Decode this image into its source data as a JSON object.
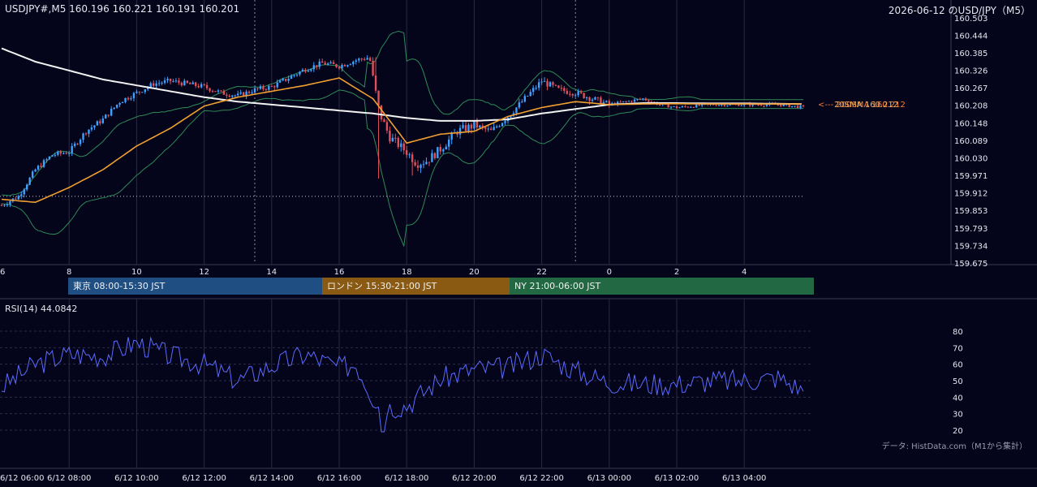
{
  "header": {
    "ohlc_text": "USDJPY#,M5 160.196 160.221 160.191 160.201",
    "title": "2026-06-12 のUSD/JPY（M5）"
  },
  "sessions": {
    "tokyo": "東京 08:00-15:30 JST",
    "london": "ロンドン 15:30-21:00 JST",
    "ny": "NY 21:00-06:00 JST"
  },
  "rsi": {
    "label": "RSI(14) 44.0842"
  },
  "credit": "データ: HistData.com（M1から集計）",
  "colors": {
    "background": "#04041a",
    "candle_up": "#3fa0ff",
    "candle_down": "#e0505a",
    "sma20": "#f0a030",
    "sma200": "#f2f2f2",
    "bollinger": "#2e8b57",
    "rsi_line": "#5b6bff",
    "grid": "#2a2a40"
  },
  "chart_data": [
    {
      "type": "line",
      "name": "price",
      "ylim": [
        159.675,
        160.503
      ],
      "yticks": [
        "160.503",
        "160.444",
        "160.385",
        "160.326",
        "160.267",
        "160.208",
        "160.148",
        "160.089",
        "160.030",
        "159.971",
        "159.912",
        "159.853",
        "159.793",
        "159.734",
        "159.675"
      ],
      "xticks_top": [
        "6",
        "8",
        "10",
        "12",
        "14",
        "16",
        "18",
        "20",
        "22",
        "0",
        "2",
        "4"
      ],
      "x_hours": [
        6,
        7,
        8,
        9,
        10,
        11,
        12,
        13,
        14,
        15,
        16,
        17,
        18,
        19,
        20,
        21,
        22,
        23,
        24,
        25,
        26,
        27,
        28,
        29.75
      ],
      "series": [
        {
          "name": "20SMA",
          "values": [
            159.89,
            159.88,
            159.93,
            159.99,
            160.07,
            160.13,
            160.205,
            160.235,
            160.255,
            160.275,
            160.3,
            160.23,
            160.08,
            160.11,
            160.12,
            160.17,
            160.2,
            160.22,
            160.21,
            160.212,
            160.213,
            160.212,
            160.212,
            160.212
          ]
        },
        {
          "name": "200SMA",
          "values": [
            160.4,
            160.355,
            160.325,
            160.295,
            160.275,
            160.255,
            160.235,
            160.22,
            160.21,
            160.2,
            160.19,
            160.18,
            160.165,
            160.155,
            160.155,
            160.16,
            160.18,
            160.195,
            160.21,
            160.215,
            160.215,
            160.214,
            160.214,
            160.212
          ]
        }
      ],
      "annotations": {
        "price_label_arrow": "<--- 200SMA 160.212",
        "price_label_sma": "20SMA 160.212",
        "support_level": 159.9
      }
    },
    {
      "type": "line",
      "name": "RSI(14)",
      "ylim": [
        15,
        85
      ],
      "yticks": [
        "80",
        "70",
        "60",
        "50",
        "40",
        "30",
        "20"
      ],
      "xticks": [
        "6/12 06:00",
        "6/12 08:00",
        "6/12 10:00",
        "6/12 12:00",
        "6/12 14:00",
        "6/12 16:00",
        "6/12 18:00",
        "6/12 20:00",
        "6/12 22:00",
        "6/13 00:00",
        "6/13 02:00",
        "6/13 04:00"
      ],
      "x_hours": [
        6,
        7,
        8,
        9,
        10,
        11,
        12,
        13,
        14,
        15,
        16,
        16.5,
        17,
        17.5,
        18,
        19,
        20,
        21,
        22,
        23,
        24,
        25,
        26,
        27,
        28,
        29,
        29.75
      ],
      "values": [
        46,
        60,
        66,
        65,
        73,
        65,
        60,
        50,
        59,
        66,
        58,
        60,
        40,
        34,
        35,
        51,
        57,
        58,
        66,
        56,
        49,
        48,
        48,
        50,
        50,
        52,
        44
      ]
    }
  ]
}
